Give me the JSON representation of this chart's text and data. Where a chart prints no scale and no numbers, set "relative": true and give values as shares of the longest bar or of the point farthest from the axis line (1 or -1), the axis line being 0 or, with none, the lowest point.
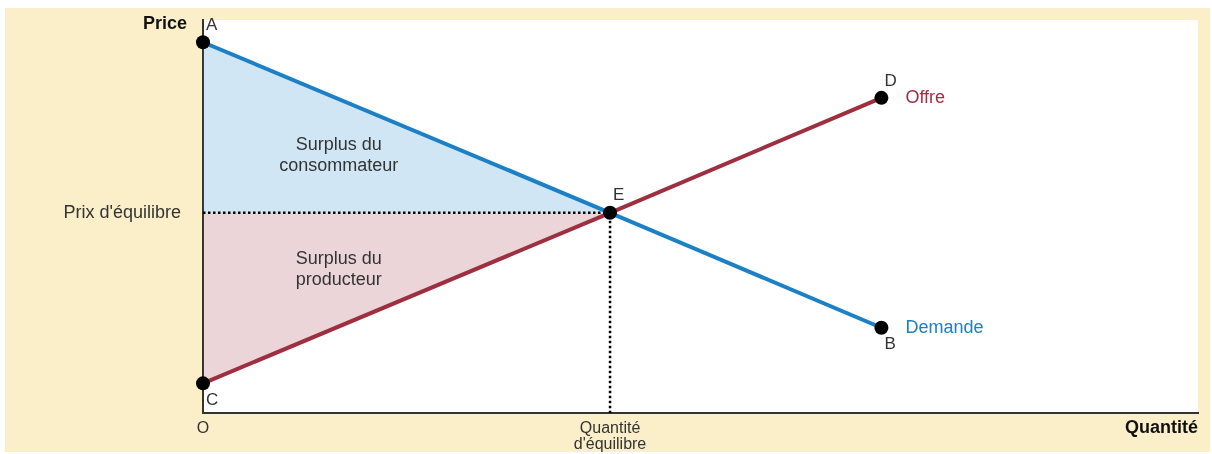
{
  "chart_data": {
    "type": "line",
    "relative": true,
    "xlabel": "Quantité",
    "ylabel": "Price",
    "categories": [
      "O",
      null,
      null,
      null,
      null,
      null,
      null,
      null,
      null,
      "Quantité d'équilibre",
      null,
      null,
      null,
      null,
      null,
      null,
      null,
      null,
      null,
      null,
      null,
      null,
      null
    ],
    "series": [
      {
        "type": "line",
        "color": "#000000",
        "line_style": "dotted",
        "marker": "none",
        "x": [
          "O",
          "Quantité d'équilibre",
          "Quantité d'équilibre"
        ],
        "values": [
          0.54,
          0.54,
          0
        ]
      },
      {
        "name": "Demande",
        "type": "line",
        "color": "#1b80c6",
        "marker": "none",
        "values": [
          1,
          null,
          null,
          null,
          null,
          null,
          null,
          null,
          null,
          0.54,
          null,
          null,
          null,
          null,
          null,
          0.23,
          null,
          null,
          null,
          null,
          null,
          null,
          null
        ],
        "lower": [
          0.54,
          null,
          null,
          null,
          null,
          null,
          null,
          null,
          null,
          0.54,
          null,
          null,
          null,
          null,
          null,
          null,
          null,
          null,
          null,
          null,
          null,
          null,
          null
        ],
        "upper": [
          1,
          null,
          null,
          null,
          null,
          null,
          null,
          null,
          null,
          0.54,
          null,
          null,
          null,
          null,
          null,
          null,
          null,
          null,
          null,
          null,
          null,
          null,
          null
        ]
      },
      {
        "name": "Offre",
        "type": "line",
        "color": "#9d2f40",
        "marker": "none",
        "values": [
          0.08,
          null,
          null,
          null,
          null,
          null,
          null,
          null,
          null,
          0.54,
          null,
          null,
          null,
          null,
          null,
          0.85,
          null,
          null,
          null,
          null,
          null,
          null,
          null
        ],
        "lower": [
          0.08,
          null,
          null,
          null,
          null,
          null,
          null,
          null,
          null,
          0.54,
          null,
          null,
          null,
          null,
          null,
          null,
          null,
          null,
          null,
          null,
          null,
          null,
          null
        ],
        "upper": [
          0.54,
          null,
          null,
          null,
          null,
          null,
          null,
          null,
          null,
          0.54,
          null,
          null,
          null,
          null,
          null,
          null,
          null,
          null,
          null,
          null,
          null,
          null,
          null
        ]
      },
      {
        "name": "A",
        "type": "scatter",
        "color": "#000000",
        "marker": "circle",
        "values": [
          1,
          null,
          null,
          null,
          null,
          null,
          null,
          null,
          null,
          null,
          null,
          null,
          null,
          null,
          null,
          null,
          null,
          null,
          null,
          null,
          null,
          null,
          null
        ]
      },
      {
        "name": "B",
        "type": "scatter",
        "color": "#000000",
        "marker": "circle",
        "values": [
          null,
          null,
          null,
          null,
          null,
          null,
          null,
          null,
          null,
          null,
          null,
          null,
          null,
          null,
          null,
          0.23,
          null,
          null,
          null,
          null,
          null,
          null,
          null
        ]
      },
      {
        "name": "C",
        "type": "scatter",
        "color": "#000000",
        "marker": "circle",
        "values": [
          0.08,
          null,
          null,
          null,
          null,
          null,
          null,
          null,
          null,
          null,
          null,
          null,
          null,
          null,
          null,
          null,
          null,
          null,
          null,
          null,
          null,
          null,
          null
        ]
      },
      {
        "name": "D",
        "type": "scatter",
        "color": "#000000",
        "marker": "circle",
        "values": [
          null,
          null,
          null,
          null,
          null,
          null,
          null,
          null,
          null,
          null,
          null,
          null,
          null,
          null,
          null,
          0.85,
          null,
          null,
          null,
          null,
          null,
          null,
          null
        ]
      },
      {
        "name": "E",
        "type": "scatter",
        "color": "#000000",
        "marker": "circle",
        "values": [
          null,
          null,
          null,
          null,
          null,
          null,
          null,
          null,
          null,
          0.54,
          null,
          null,
          null,
          null,
          null,
          null,
          null,
          null,
          null,
          null,
          null,
          null,
          null
        ]
      }
    ],
    "annotations": [
      "Surplus du consommateur",
      "Surplus du producteur",
      {
        "text": "Prix d'équilibre",
        "x": "O",
        "y": 0.54
      }
    ]
  }
}
